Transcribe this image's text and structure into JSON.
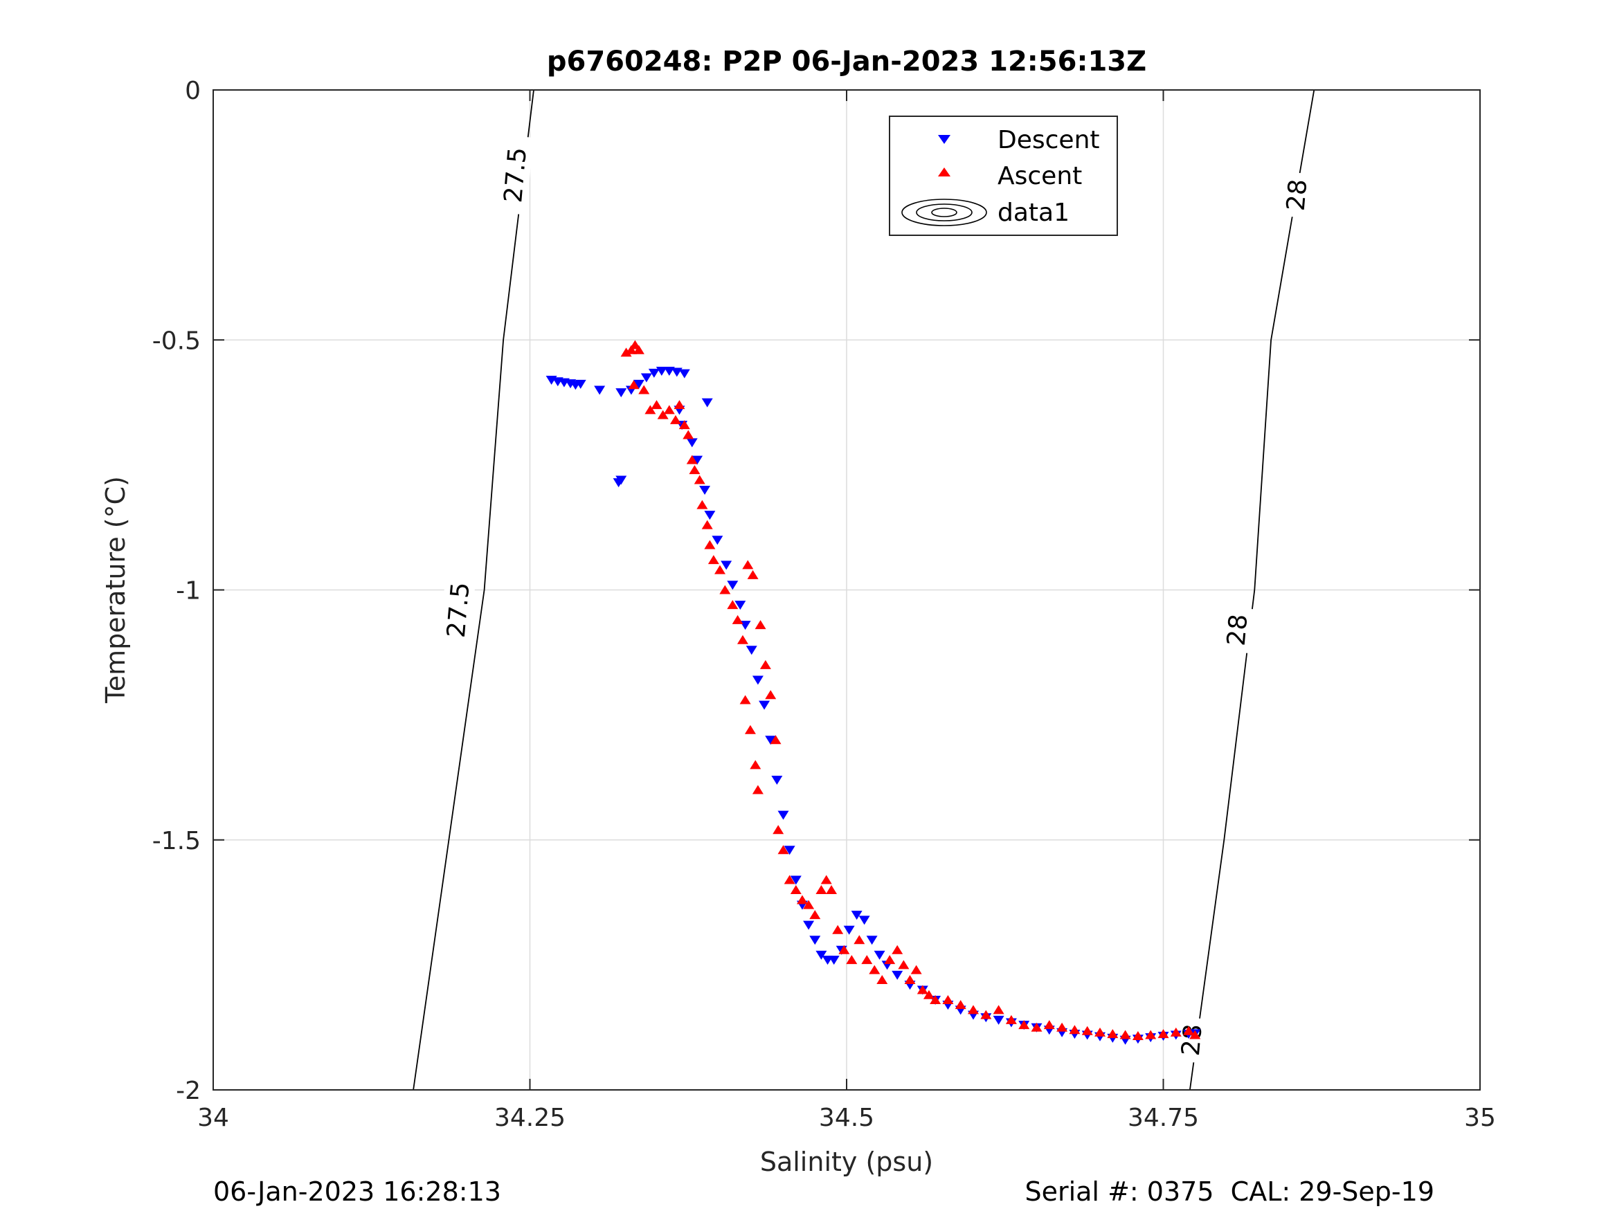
{
  "chart_data": {
    "type": "scatter",
    "title": "p6760248: P2P 06-Jan-2023 12:56:13Z",
    "xlabel": "Salinity (psu)",
    "ylabel": "Temperature (°C)",
    "xlim": [
      34,
      35
    ],
    "ylim": [
      -2,
      0
    ],
    "xticks": [
      34,
      34.25,
      34.5,
      34.75,
      35
    ],
    "xtick_labels": [
      "34",
      "34.25",
      "34.5",
      "34.75",
      "35"
    ],
    "yticks": [
      0,
      -0.5,
      -1,
      -1.5,
      -2
    ],
    "ytick_labels": [
      "0",
      "-0.5",
      "-1",
      "-1.5",
      "-2"
    ],
    "grid": true,
    "legend_position": "top-right (inside)",
    "legend": [
      "Descent",
      "Ascent",
      "data1"
    ],
    "colors": {
      "descent": "#0000ff",
      "ascent": "#ff0000",
      "contour": "#000000",
      "grid": "#dcdcdc"
    },
    "contours": [
      {
        "label": "27.5",
        "x": [
          34.158,
          34.186,
          34.214,
          34.229,
          34.253
        ],
        "y": [
          -2.0,
          -1.5,
          -1.0,
          -0.5,
          0.0
        ]
      },
      {
        "label": "28",
        "x": [
          34.771,
          34.798,
          34.822,
          34.835,
          34.869
        ],
        "y": [
          -2.0,
          -1.5,
          -1.0,
          -0.5,
          0.0
        ]
      }
    ],
    "contour_labels": [
      {
        "text": "27.5",
        "x": 34.238,
        "y": -0.17
      },
      {
        "text": "27.5",
        "x": 34.193,
        "y": -1.04
      },
      {
        "text": "28",
        "x": 34.855,
        "y": -0.21
      },
      {
        "text": "28",
        "x": 34.808,
        "y": -1.08
      },
      {
        "text": "28",
        "x": 34.772,
        "y": -1.9
      }
    ],
    "series": [
      {
        "name": "Descent",
        "marker": "triangle-down",
        "x": [
          34.267,
          34.272,
          34.277,
          34.282,
          34.286,
          34.29,
          34.305,
          34.322,
          34.33,
          34.336,
          34.342,
          34.348,
          34.354,
          34.36,
          34.366,
          34.372,
          34.32,
          34.368,
          34.39,
          34.322,
          34.37,
          34.378,
          34.382,
          34.388,
          34.392,
          34.398,
          34.405,
          34.41,
          34.416,
          34.42,
          34.425,
          34.43,
          34.435,
          34.44,
          34.445,
          34.45,
          34.455,
          34.46,
          34.465,
          34.47,
          34.475,
          34.48,
          34.485,
          34.49,
          34.496,
          34.502,
          34.508,
          34.514,
          34.52,
          34.526,
          34.532,
          34.54,
          34.55,
          34.56,
          34.57,
          34.58,
          34.59,
          34.6,
          34.61,
          34.62,
          34.63,
          34.64,
          34.65,
          34.66,
          34.67,
          34.68,
          34.69,
          34.7,
          34.71,
          34.72,
          34.73,
          34.74,
          34.75,
          34.76,
          34.77,
          34.775
        ],
        "y": [
          -0.58,
          -0.583,
          -0.585,
          -0.587,
          -0.59,
          -0.588,
          -0.6,
          -0.605,
          -0.6,
          -0.588,
          -0.575,
          -0.566,
          -0.562,
          -0.562,
          -0.564,
          -0.567,
          -0.785,
          -0.64,
          -0.625,
          -0.78,
          -0.67,
          -0.705,
          -0.74,
          -0.8,
          -0.85,
          -0.9,
          -0.95,
          -0.99,
          -1.03,
          -1.07,
          -1.12,
          -1.18,
          -1.23,
          -1.3,
          -1.38,
          -1.45,
          -1.52,
          -1.58,
          -1.63,
          -1.67,
          -1.7,
          -1.73,
          -1.74,
          -1.74,
          -1.72,
          -1.68,
          -1.65,
          -1.66,
          -1.7,
          -1.73,
          -1.75,
          -1.77,
          -1.79,
          -1.8,
          -1.82,
          -1.83,
          -1.84,
          -1.85,
          -1.855,
          -1.86,
          -1.865,
          -1.87,
          -1.875,
          -1.88,
          -1.885,
          -1.888,
          -1.89,
          -1.893,
          -1.896,
          -1.9,
          -1.898,
          -1.895,
          -1.892,
          -1.89,
          -1.888,
          -1.887
        ]
      },
      {
        "name": "Ascent",
        "marker": "triangle-up",
        "x": [
          34.326,
          34.33,
          34.333,
          34.336,
          34.332,
          34.34,
          34.345,
          34.35,
          34.355,
          34.36,
          34.365,
          34.368,
          34.372,
          34.375,
          34.378,
          34.38,
          34.384,
          34.386,
          34.39,
          34.392,
          34.395,
          34.4,
          34.404,
          34.41,
          34.414,
          34.418,
          34.42,
          34.424,
          34.428,
          34.43,
          34.422,
          34.426,
          34.432,
          34.436,
          34.44,
          34.444,
          34.446,
          34.45,
          34.455,
          34.46,
          34.465,
          34.47,
          34.475,
          34.48,
          34.484,
          34.488,
          34.493,
          34.498,
          34.504,
          34.51,
          34.516,
          34.522,
          34.528,
          34.534,
          34.54,
          34.545,
          34.55,
          34.555,
          34.56,
          34.565,
          34.57,
          34.58,
          34.59,
          34.6,
          34.61,
          34.62,
          34.63,
          34.64,
          34.65,
          34.66,
          34.67,
          34.68,
          34.69,
          34.7,
          34.71,
          34.72,
          34.73,
          34.74,
          34.75,
          34.76,
          34.77,
          34.775
        ],
        "y": [
          -0.525,
          -0.52,
          -0.51,
          -0.52,
          -0.59,
          -0.6,
          -0.64,
          -0.63,
          -0.65,
          -0.64,
          -0.66,
          -0.63,
          -0.67,
          -0.69,
          -0.74,
          -0.76,
          -0.78,
          -0.83,
          -0.87,
          -0.91,
          -0.94,
          -0.96,
          -1.0,
          -1.03,
          -1.06,
          -1.1,
          -1.22,
          -1.28,
          -1.35,
          -1.4,
          -0.95,
          -0.97,
          -1.07,
          -1.15,
          -1.21,
          -1.3,
          -1.48,
          -1.52,
          -1.58,
          -1.6,
          -1.62,
          -1.63,
          -1.65,
          -1.6,
          -1.58,
          -1.6,
          -1.68,
          -1.72,
          -1.74,
          -1.7,
          -1.74,
          -1.76,
          -1.78,
          -1.74,
          -1.72,
          -1.75,
          -1.78,
          -1.76,
          -1.8,
          -1.81,
          -1.82,
          -1.82,
          -1.83,
          -1.84,
          -1.85,
          -1.84,
          -1.86,
          -1.87,
          -1.875,
          -1.87,
          -1.875,
          -1.88,
          -1.882,
          -1.885,
          -1.888,
          -1.89,
          -1.892,
          -1.89,
          -1.888,
          -1.885,
          -1.882,
          -1.89
        ]
      }
    ]
  },
  "footer": {
    "left": "06-Jan-2023 16:28:13",
    "right": "Serial #: 0375  CAL: 29-Sep-19"
  }
}
